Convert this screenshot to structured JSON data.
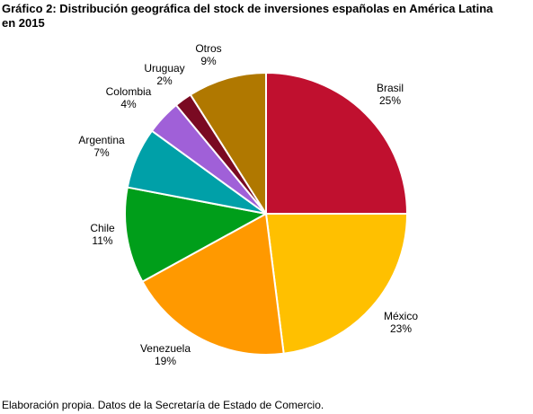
{
  "title_line1": "Gráfico 2: Distribución geográfica del stock de inversiones españolas en América Latina",
  "title_line2": "en 2015",
  "footnote": "Elaboración propia. Datos de la Secretaría de Estado de Comercio.",
  "chart_data": {
    "type": "pie",
    "legend": "none",
    "slices": [
      {
        "label": "Brasil",
        "pct": "25%",
        "value": 25,
        "color": "#c0102f"
      },
      {
        "label": "México",
        "pct": "23%",
        "value": 23,
        "color": "#ffc000"
      },
      {
        "label": "Venezuela",
        "pct": "19%",
        "value": 19,
        "color": "#ff9900"
      },
      {
        "label": "Chile",
        "pct": "11%",
        "value": 11,
        "color": "#009e1a"
      },
      {
        "label": "Argentina",
        "pct": "7%",
        "value": 7,
        "color": "#00a0a8"
      },
      {
        "label": "Colombia",
        "pct": "4%",
        "value": 4,
        "color": "#a060d8"
      },
      {
        "label": "Uruguay",
        "pct": "2%",
        "value": 2,
        "color": "#7a0a22"
      },
      {
        "label": "Otros",
        "pct": "9%",
        "value": 9,
        "color": "#b07800"
      }
    ]
  }
}
